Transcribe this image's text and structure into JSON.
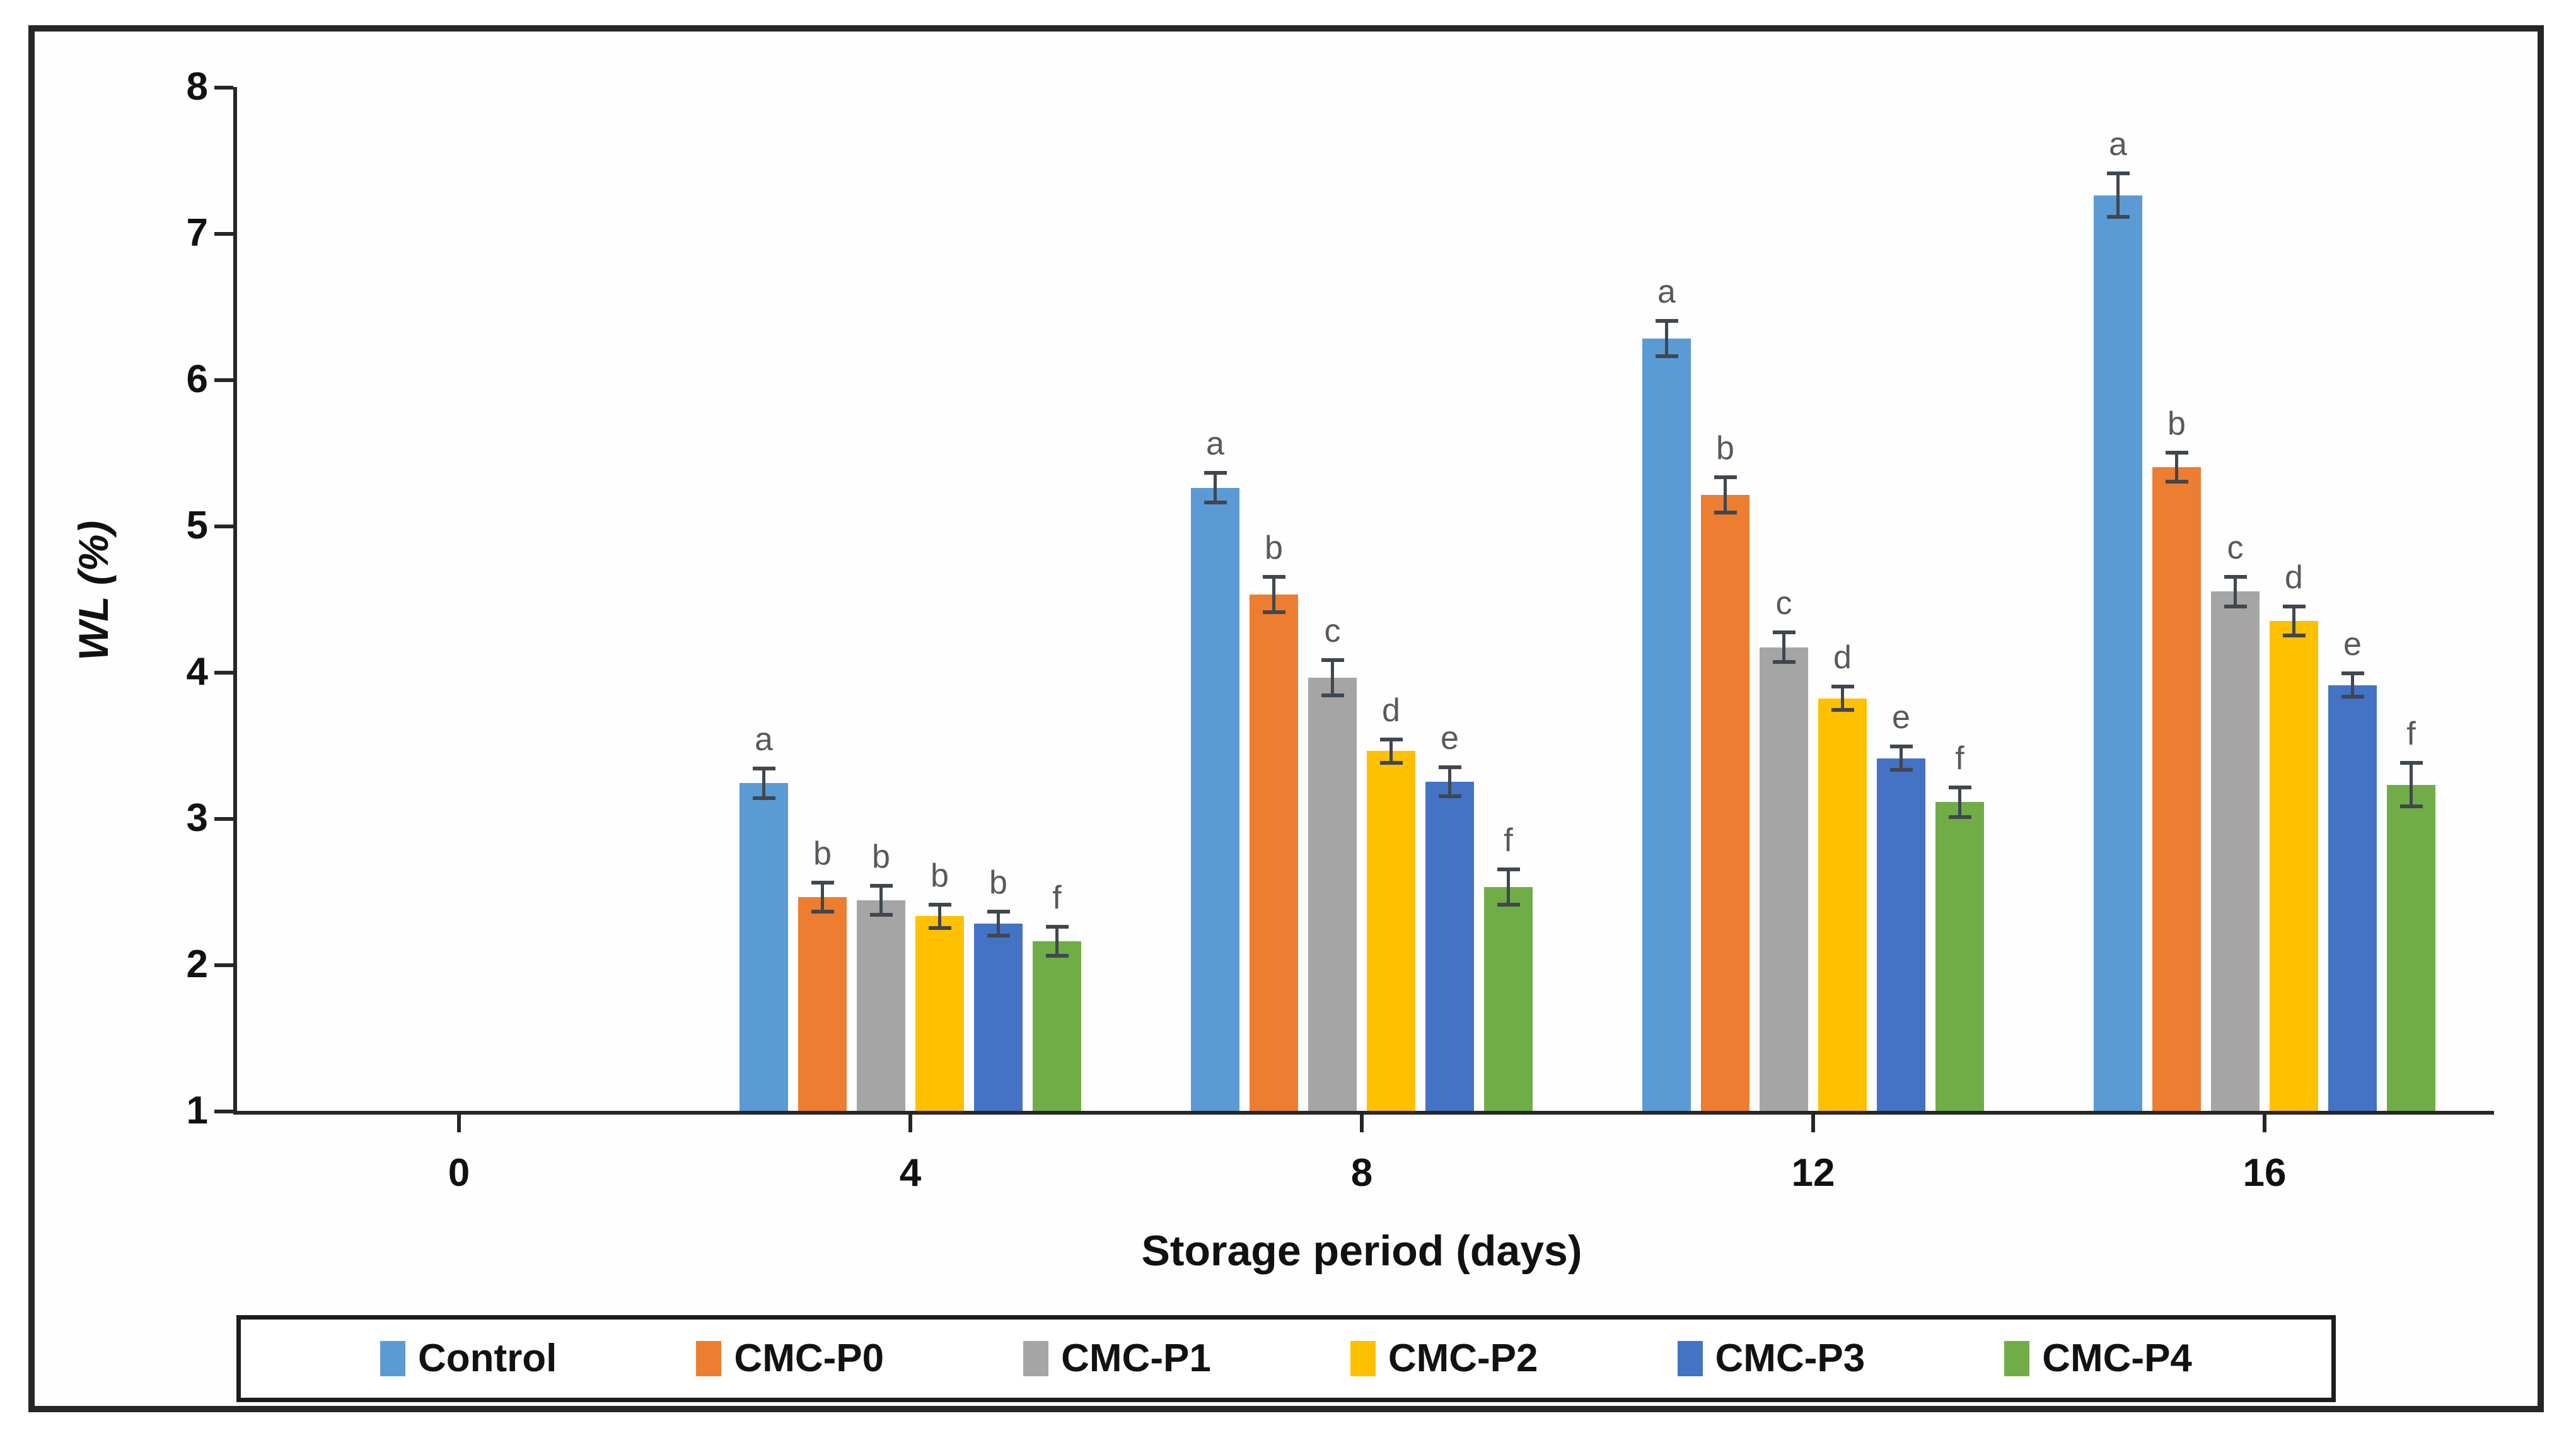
{
  "chart_data": {
    "type": "bar",
    "title": "",
    "xlabel": "Storage period (days)",
    "ylabel": "WL (%)",
    "ylim": [
      1,
      8
    ],
    "yticks": [
      "1",
      "2",
      "3",
      "4",
      "5",
      "6",
      "7",
      "8"
    ],
    "grid": false,
    "legend_position": "bottom",
    "categories": [
      "0",
      "4",
      "8",
      "12",
      "16"
    ],
    "series": [
      {
        "name": "Control",
        "color": "#5B9BD5",
        "values": [
          0,
          3.24,
          5.26,
          6.28,
          7.26
        ],
        "errors": [
          0,
          0.1,
          0.1,
          0.12,
          0.15
        ],
        "letters": [
          "",
          "a",
          "a",
          "a",
          "a"
        ]
      },
      {
        "name": "CMC-P0",
        "color": "#ED7D31",
        "values": [
          0,
          2.46,
          4.53,
          5.21,
          5.4
        ],
        "errors": [
          0,
          0.1,
          0.12,
          0.12,
          0.1
        ],
        "letters": [
          "",
          "b",
          "b",
          "b",
          "b"
        ]
      },
      {
        "name": "CMC-P1",
        "color": "#A5A5A5",
        "values": [
          0,
          2.44,
          3.96,
          4.17,
          4.55
        ],
        "errors": [
          0,
          0.1,
          0.12,
          0.1,
          0.1
        ],
        "letters": [
          "",
          "b",
          "c",
          "c",
          "c"
        ]
      },
      {
        "name": "CMC-P2",
        "color": "#FFC000",
        "values": [
          0,
          2.33,
          3.46,
          3.82,
          4.35
        ],
        "errors": [
          0,
          0.08,
          0.08,
          0.08,
          0.1
        ],
        "letters": [
          "",
          "b",
          "d",
          "d",
          "d"
        ]
      },
      {
        "name": "CMC-P3",
        "color": "#4472C4",
        "values": [
          0,
          2.28,
          3.25,
          3.41,
          3.91
        ],
        "errors": [
          0,
          0.08,
          0.1,
          0.08,
          0.08
        ],
        "letters": [
          "",
          "b",
          "e",
          "e",
          "e"
        ]
      },
      {
        "name": "CMC-P4",
        "color": "#70AD47",
        "values": [
          0,
          2.16,
          2.53,
          3.11,
          3.23
        ],
        "errors": [
          0,
          0.1,
          0.12,
          0.1,
          0.15
        ],
        "letters": [
          "",
          "f",
          "f",
          "f",
          "f"
        ]
      }
    ],
    "error_bar_color": "#40474f",
    "letter_color": "#595959",
    "axis_color": "#262626"
  }
}
